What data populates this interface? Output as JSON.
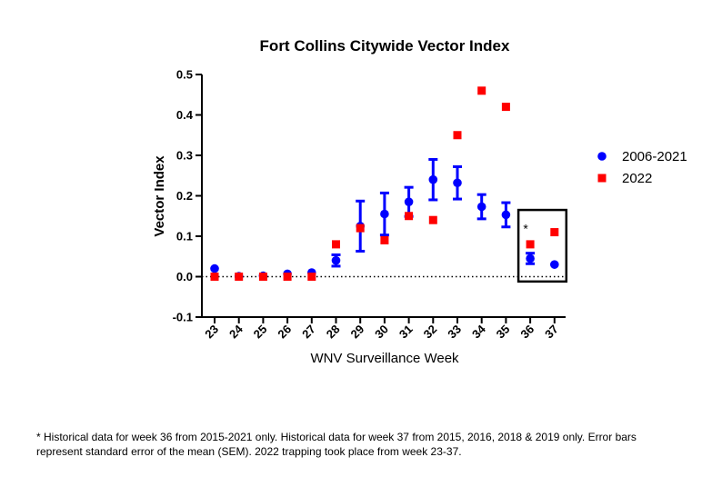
{
  "chart_data": {
    "type": "scatter",
    "title": "Fort Collins Citywide Vector Index",
    "xlabel": "WNV Surveillance Week",
    "ylabel": "Vector Index",
    "categories": [
      "23",
      "24",
      "25",
      "26",
      "27",
      "28",
      "29",
      "30",
      "31",
      "32",
      "33",
      "34",
      "35",
      "36",
      "37"
    ],
    "ylim": [
      -0.1,
      0.5
    ],
    "yticks": [
      "-0.1",
      "0.0",
      "0.1",
      "0.2",
      "0.3",
      "0.4",
      "0.5"
    ],
    "reference_line": 0,
    "grid": false,
    "legend_position": "right",
    "series": [
      {
        "name": "2006-2021",
        "marker": "circle",
        "color": "#0000ff",
        "values": [
          0.02,
          0.001,
          0.002,
          0.007,
          0.01,
          0.04,
          0.125,
          0.155,
          0.185,
          0.24,
          0.232,
          0.173,
          0.153,
          0.045,
          0.03
        ],
        "errors": [
          0.003,
          0.002,
          0.002,
          0.003,
          0.004,
          0.014,
          0.062,
          0.052,
          0.036,
          0.05,
          0.04,
          0.03,
          0.03,
          0.013,
          0.007
        ]
      },
      {
        "name": "2022",
        "marker": "square",
        "color": "#ff0000",
        "values": [
          0.0,
          0.0,
          0.0,
          0.0,
          0.0,
          0.08,
          0.12,
          0.09,
          0.15,
          0.14,
          0.35,
          0.46,
          0.42,
          0.08,
          0.11
        ]
      }
    ],
    "annotation": {
      "text": "*",
      "week": "36"
    },
    "highlight_box_weeks": [
      "36",
      "37"
    ]
  },
  "footnote": "* Historical data for week 36 from 2015-2021 only. Historical data for week 37 from 2015, 2016, 2018 & 2019 only. Error bars represent standard error of the mean (SEM). 2022 trapping took place from week 23-37."
}
